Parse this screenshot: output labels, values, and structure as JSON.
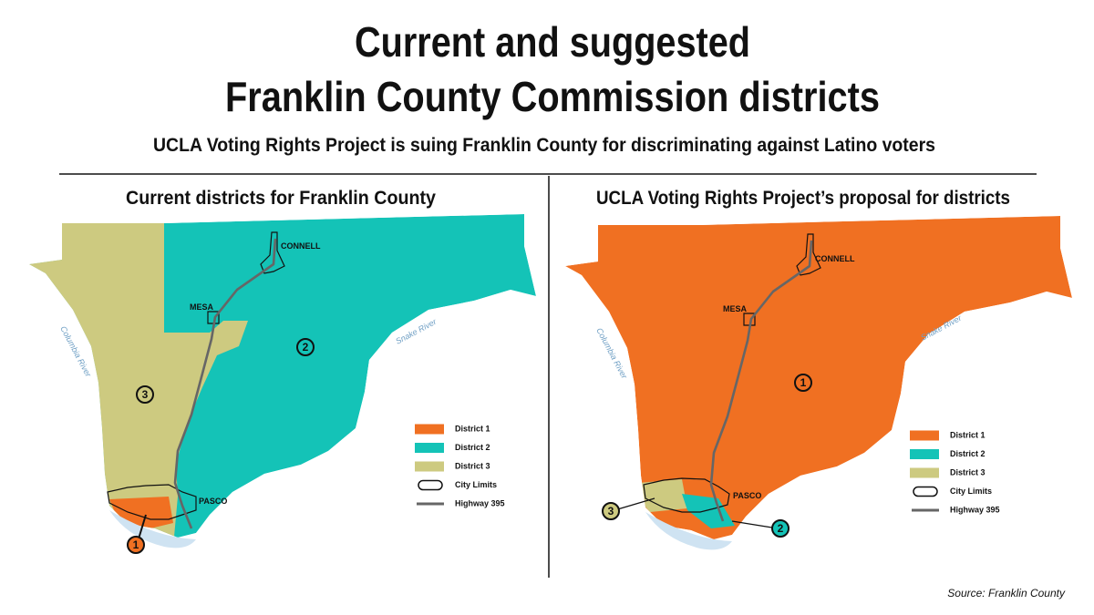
{
  "header": {
    "title_lines": [
      "Current and suggested",
      "Franklin County Commission districts"
    ],
    "subtitle": "UCLA Voting Rights Project is suing Franklin County for discriminating against Latino voters"
  },
  "maps": [
    {
      "title": "Current districts for Franklin County",
      "places": [
        "CONNELL",
        "MESA",
        "PASCO"
      ],
      "rivers": [
        "Columbia River",
        "Snake River"
      ],
      "district_markers": [
        "1",
        "2",
        "3"
      ]
    },
    {
      "title": "UCLA Voting Rights Project’s proposal for districts",
      "places": [
        "CONNELL",
        "MESA",
        "PASCO"
      ],
      "rivers": [
        "Columbia River",
        "Snake River"
      ],
      "district_markers": [
        "1",
        "2",
        "3"
      ]
    }
  ],
  "legend": [
    {
      "label": "District 1",
      "color": "#f07022"
    },
    {
      "label": "District 2",
      "color": "#14c3b7"
    },
    {
      "label": "District 3",
      "color": "#cdca80"
    },
    {
      "label": "City Limits"
    },
    {
      "label": "Highway 395",
      "color": "#666666"
    }
  ],
  "source": "Source: Franklin County"
}
